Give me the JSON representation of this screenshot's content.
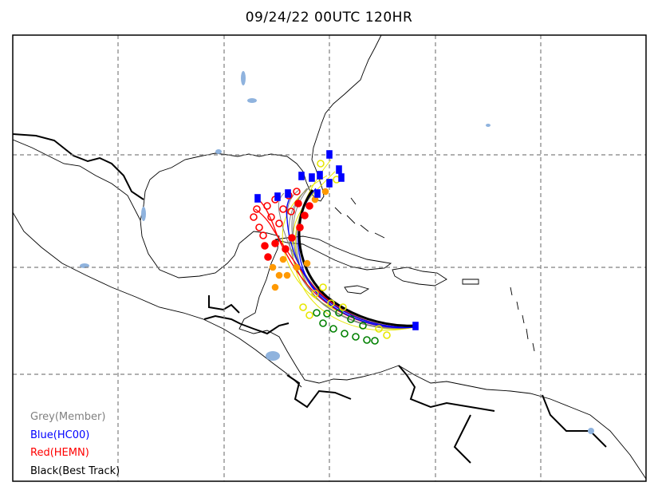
{
  "title": "09/24/22 00UTC 120HR",
  "legend": [
    {
      "label": "Grey(Member)",
      "color": "#808080"
    },
    {
      "label": "Blue(HC00)",
      "color": "#0000ff"
    },
    {
      "label": "Red(HEMN)",
      "color": "#ff0000"
    },
    {
      "label": "Black(Best Track)",
      "color": "#000000"
    }
  ],
  "colors": {
    "member": "#808080",
    "hc00": "#0000ff",
    "hemn": "#ff0000",
    "best_track": "#000000",
    "yellow_member": "#e6e600",
    "orange_marker": "#ff9900",
    "green_marker": "#008000",
    "lakes": "#8fb3de",
    "grid": "#808080"
  }
}
